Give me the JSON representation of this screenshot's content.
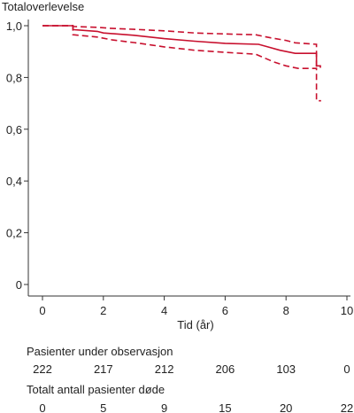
{
  "chart_data": {
    "type": "line",
    "title": "",
    "ylabel": "Totaloverlevelse",
    "xlabel": "Tid (år)",
    "xlim": [
      0,
      10
    ],
    "ylim": [
      0,
      1.0
    ],
    "x_ticks": [
      0,
      2,
      4,
      6,
      8,
      10
    ],
    "x_tick_labels": [
      "0",
      "2",
      "4",
      "6",
      "8",
      "10"
    ],
    "y_ticks": [
      0,
      0.2,
      0.4,
      0.6,
      0.8,
      1.0
    ],
    "y_tick_labels": [
      "0",
      "0,2",
      "0,4",
      "0,6",
      "0,8",
      "1,0"
    ],
    "grid": false,
    "color": "#c8102e",
    "series": [
      {
        "style": "solid",
        "points": [
          [
            0,
            1.0
          ],
          [
            1.0,
            1.0
          ],
          [
            1.0,
            0.985
          ],
          [
            1.8,
            0.978
          ],
          [
            2.0,
            0.972
          ],
          [
            3.0,
            0.963
          ],
          [
            3.6,
            0.955
          ],
          [
            4.0,
            0.95
          ],
          [
            5.0,
            0.94
          ],
          [
            6.0,
            0.932
          ],
          [
            7.1,
            0.928
          ],
          [
            7.4,
            0.918
          ],
          [
            7.8,
            0.905
          ],
          [
            8.3,
            0.893
          ],
          [
            9.0,
            0.893
          ],
          [
            9.0,
            0.845
          ],
          [
            9.15,
            0.845
          ]
        ]
      },
      {
        "style": "dashed",
        "points": [
          [
            0,
            1.0
          ],
          [
            1.0,
            1.0
          ],
          [
            1.0,
            0.997
          ],
          [
            1.8,
            0.994
          ],
          [
            2.2,
            0.99
          ],
          [
            3.0,
            0.986
          ],
          [
            4.0,
            0.98
          ],
          [
            5.0,
            0.972
          ],
          [
            6.0,
            0.968
          ],
          [
            7.0,
            0.965
          ],
          [
            7.5,
            0.953
          ],
          [
            8.0,
            0.943
          ],
          [
            8.3,
            0.934
          ],
          [
            9.0,
            0.928
          ],
          [
            9.0,
            0.84
          ],
          [
            9.15,
            0.84
          ]
        ]
      },
      {
        "style": "dashed",
        "points": [
          [
            0,
            1.0
          ],
          [
            1.0,
            1.0
          ],
          [
            1.0,
            0.965
          ],
          [
            1.8,
            0.956
          ],
          [
            2.3,
            0.945
          ],
          [
            3.0,
            0.935
          ],
          [
            3.6,
            0.925
          ],
          [
            4.0,
            0.918
          ],
          [
            5.0,
            0.905
          ],
          [
            6.0,
            0.897
          ],
          [
            7.0,
            0.89
          ],
          [
            7.3,
            0.875
          ],
          [
            7.6,
            0.86
          ],
          [
            8.0,
            0.845
          ],
          [
            8.4,
            0.835
          ],
          [
            9.0,
            0.835
          ],
          [
            9.0,
            0.71
          ],
          [
            9.15,
            0.71
          ]
        ]
      }
    ]
  },
  "risk_table": {
    "patients_title": "Pasienter under observasjon",
    "patients": [
      "222",
      "217",
      "212",
      "206",
      "103",
      "0"
    ],
    "deaths_title": "Totalt antall pasienter døde",
    "deaths": [
      "0",
      "5",
      "9",
      "15",
      "20",
      "22"
    ]
  }
}
